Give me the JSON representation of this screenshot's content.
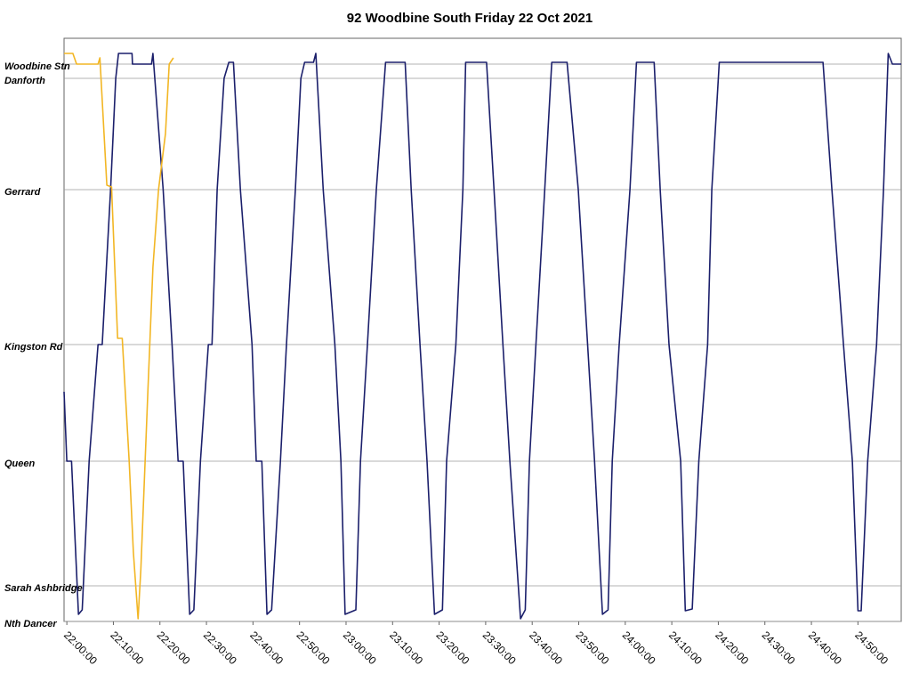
{
  "chart_data": {
    "type": "line",
    "title": "92 Woodbine South Friday 22 Oct 2021",
    "xlim": [
      -0.6,
      179.3
    ],
    "xticks": [
      {
        "value": 0,
        "label": "22:00:00"
      },
      {
        "value": 10,
        "label": "22:10:00"
      },
      {
        "value": 20,
        "label": "22:20:00"
      },
      {
        "value": 30,
        "label": "22:30:00"
      },
      {
        "value": 40,
        "label": "22:40:00"
      },
      {
        "value": 50,
        "label": "22:50:00"
      },
      {
        "value": 60,
        "label": "23:00:00"
      },
      {
        "value": 70,
        "label": "23:10:00"
      },
      {
        "value": 80,
        "label": "23:20:00"
      },
      {
        "value": 90,
        "label": "23:30:00"
      },
      {
        "value": 100,
        "label": "23:40:00"
      },
      {
        "value": 110,
        "label": "23:50:00"
      },
      {
        "value": 120,
        "label": "24:00:00"
      },
      {
        "value": 130,
        "label": "24:10:00"
      },
      {
        "value": 140,
        "label": "24:20:00"
      },
      {
        "value": 150,
        "label": "24:30:00"
      },
      {
        "value": 160,
        "label": "24:40:00"
      },
      {
        "value": 170,
        "label": "24:50:00"
      }
    ],
    "ylim": [
      0,
      655
    ],
    "yticks": [
      {
        "value": 626,
        "label": "Woodbine Stn"
      },
      {
        "value": 610,
        "label": "Danforth"
      },
      {
        "value": 485,
        "label": "Gerrard"
      },
      {
        "value": 311,
        "label": "Kingston Rd"
      },
      {
        "value": 180,
        "label": "Queen"
      },
      {
        "value": 40,
        "label": "Sarah Ashbridge"
      },
      {
        "value": 0,
        "label": "Nth Dancer"
      }
    ],
    "grid": true,
    "series": [
      {
        "color": "#1b1f6b",
        "x": [
          -0.6,
          0,
          1.0,
          2.5,
          3.3,
          4.8,
          6.7,
          7.6,
          9.4,
          10.5,
          11.1,
          14.0,
          14.1,
          18.2,
          18.5,
          20.7,
          22.6,
          23.9,
          25.0,
          26.4,
          27.3,
          28.7,
          30.4,
          31.2,
          32.3,
          33.8,
          34.8,
          35.8,
          37.3,
          39.8,
          40.7,
          41.9,
          43.0,
          44.0,
          45.9,
          47.2,
          49.1,
          50.3,
          51.1,
          53.0,
          53.5,
          55.1,
          57.6,
          58.9,
          59.8,
          62.1,
          63.1,
          64.6,
          66.5,
          68.5,
          72.7,
          74.0,
          75.9,
          77.4,
          79.0,
          80.7,
          81.6,
          83.6,
          85.1,
          85.7,
          90.2,
          91.8,
          93.7,
          95.2,
          97.5,
          98.5,
          99.4,
          100.8,
          102.7,
          104.2,
          107.5,
          109.9,
          111.9,
          113.4,
          115.1,
          116.3,
          117.2,
          118.7,
          121.0,
          122.4,
          126.2,
          127.5,
          129.4,
          131.9,
          132.9,
          134.4,
          135.8,
          137.7,
          138.6,
          140.2,
          162.5,
          164.4,
          166.9,
          168.8,
          170.0,
          170.7,
          172.1,
          174.0,
          175.5,
          176.5,
          177.4,
          179.3
        ],
        "values": [
          258,
          180,
          180,
          8,
          13,
          180,
          311,
          311,
          485,
          610,
          638,
          638,
          626,
          626,
          638,
          485,
          311,
          180,
          180,
          8,
          13,
          180,
          311,
          311,
          485,
          610,
          628,
          628,
          485,
          311,
          180,
          180,
          8,
          13,
          180,
          311,
          485,
          610,
          628,
          628,
          638,
          485,
          311,
          180,
          8,
          13,
          180,
          311,
          485,
          628,
          628,
          485,
          311,
          180,
          8,
          13,
          180,
          311,
          485,
          628,
          628,
          485,
          311,
          180,
          3,
          13,
          180,
          311,
          485,
          628,
          628,
          485,
          311,
          180,
          8,
          13,
          180,
          311,
          485,
          628,
          628,
          485,
          311,
          180,
          12,
          14,
          180,
          311,
          485,
          628,
          628,
          485,
          311,
          180,
          12,
          12,
          180,
          311,
          485,
          638,
          626,
          626
        ]
      },
      {
        "color": "#f2b624",
        "x": [
          -0.6,
          1.3,
          2.1,
          6.7,
          7.1,
          8.6,
          9.6,
          10.9,
          11.9,
          13.4,
          14.3,
          15.3,
          15.9,
          17.4,
          18.5,
          19.7,
          21.2,
          22.0,
          22.9
        ],
        "values": [
          638,
          638,
          626,
          626,
          633,
          490,
          488,
          318,
          318,
          180,
          78,
          3,
          58,
          258,
          398,
          485,
          548,
          626,
          633
        ]
      }
    ]
  }
}
